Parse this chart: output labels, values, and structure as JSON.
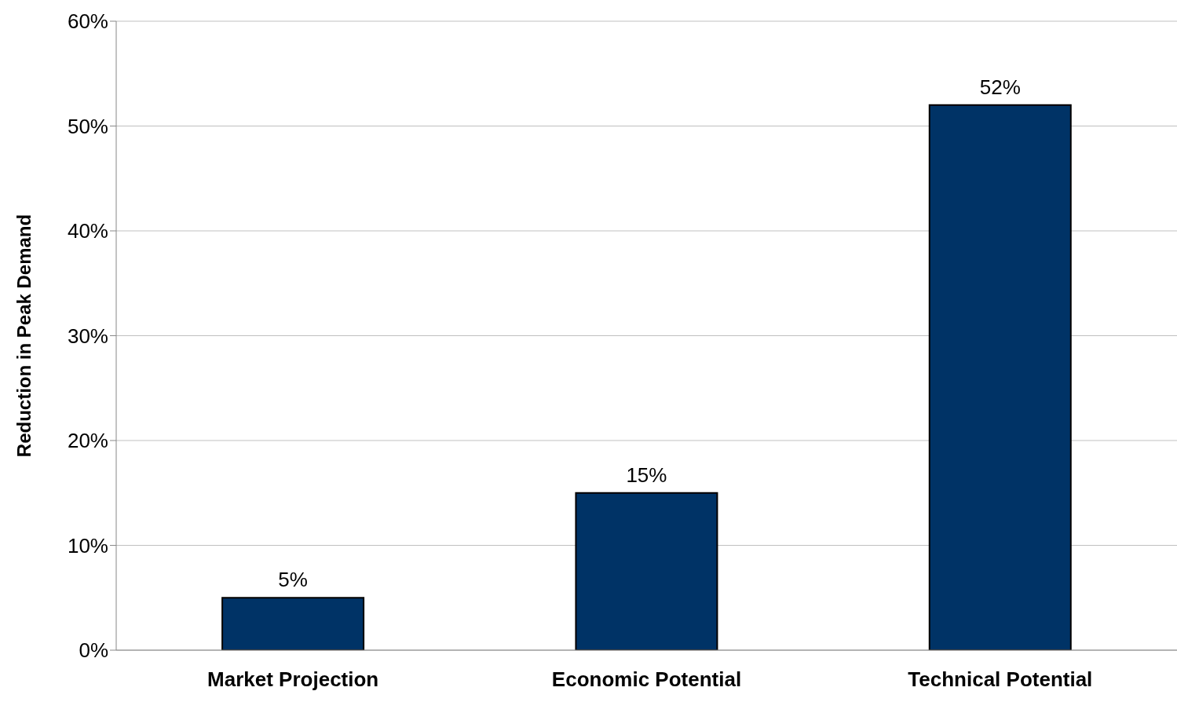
{
  "chart_data": {
    "type": "bar",
    "ylabel": "Reduction in Peak Demand",
    "categories": [
      "Market Projection",
      "Economic Potential",
      "Technical Potential"
    ],
    "values": [
      5,
      15,
      52
    ],
    "value_labels": [
      "5%",
      "15%",
      "52%"
    ],
    "color": "#003366",
    "ylim": [
      0,
      60
    ],
    "yticks": [
      {
        "value": 0,
        "label": "0%"
      },
      {
        "value": 10,
        "label": "10%"
      },
      {
        "value": 20,
        "label": "20%"
      },
      {
        "value": 30,
        "label": "30%"
      },
      {
        "value": 40,
        "label": "40%"
      },
      {
        "value": 50,
        "label": "50%"
      },
      {
        "value": 60,
        "label": "60%"
      }
    ],
    "grid": "y",
    "legend": false
  }
}
